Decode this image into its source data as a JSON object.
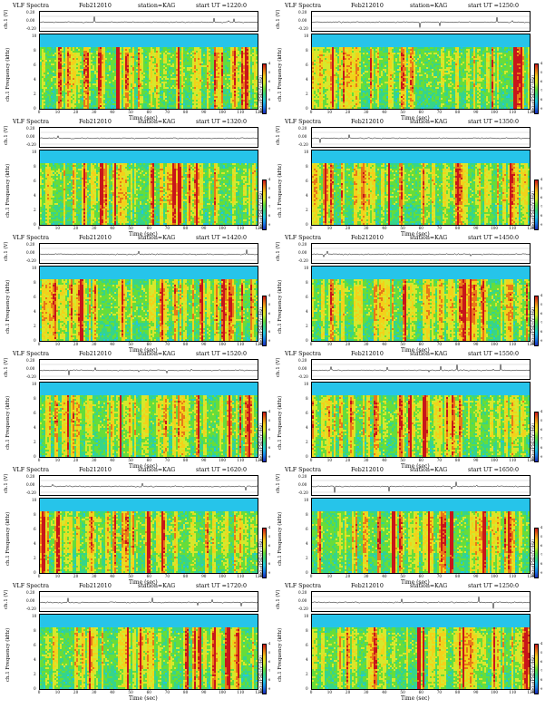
{
  "panel_common": {
    "title": "VLF Spectra",
    "date": "Feb212010",
    "station": "station=KAG",
    "start_label": "start  UT  =",
    "ch_label": "ch.1 (V)",
    "freq_label": "ch.1\nFrequency  (kHz)",
    "ch_label_line1": "ch.1",
    "freq_label_line2": "Frequency  (kHz)",
    "xlabel": "Time  (sec)",
    "cbar_label": "log₁₀(PSD)(V²/Hz)",
    "trace_ticks": [
      "0.20",
      "0.00",
      "-0.20"
    ],
    "freq_ticks": [
      "0",
      "2",
      "4",
      "6",
      "8",
      "10"
    ],
    "time_ticks": [
      "0",
      "10",
      "20",
      "30",
      "40",
      "50",
      "60",
      "70",
      "80",
      "90",
      "100",
      "110",
      "120"
    ],
    "cbar_ticks": [
      "-4",
      "-5",
      "-6",
      "-7",
      "-8",
      "-9"
    ],
    "xlim": [
      0,
      120
    ],
    "ylim_freq_khz": [
      0,
      10
    ],
    "ylim_trace_v": [
      -0.2,
      0.2
    ]
  },
  "panels": [
    {
      "start_ut": "1220:0",
      "seed": 11
    },
    {
      "start_ut": "1250:0",
      "seed": 23
    },
    {
      "start_ut": "1320:0",
      "seed": 37
    },
    {
      "start_ut": "1350:0",
      "seed": 41
    },
    {
      "start_ut": "1420:0",
      "seed": 53
    },
    {
      "start_ut": "1450:0",
      "seed": 67
    },
    {
      "start_ut": "1520:0",
      "seed": 71
    },
    {
      "start_ut": "1550:0",
      "seed": 83
    },
    {
      "start_ut": "1620:0",
      "seed": 97
    },
    {
      "start_ut": "1650:0",
      "seed": 101
    },
    {
      "start_ut": "1720:0",
      "seed": 113
    },
    {
      "start_ut": "1250:0",
      "seed": 127
    }
  ],
  "chart_data": {
    "type": "heatmap",
    "title": "VLF Spectra",
    "xlabel": "Time  (sec)",
    "ylabel": "Frequency  (kHz)",
    "xlim": [
      0,
      120
    ],
    "ylim": [
      0,
      10
    ],
    "colorbar_label": "log10(PSD)(V^2/Hz)",
    "colorbar_range": [
      -9,
      -4
    ],
    "grid": false
  }
}
